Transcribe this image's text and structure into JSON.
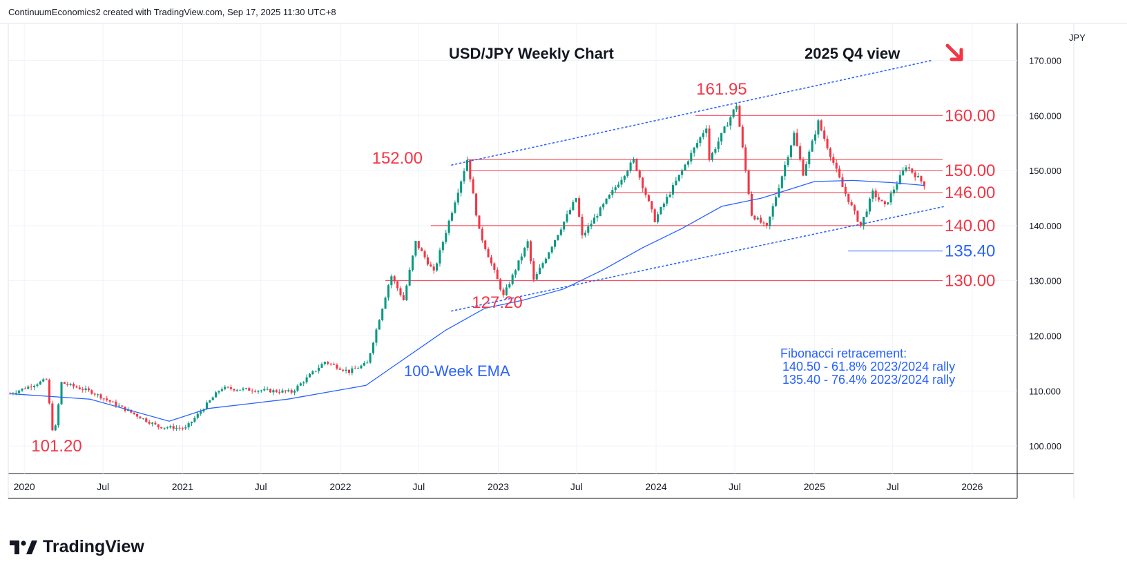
{
  "header": {
    "attribution": "ContinuumEconomics2 created with TradingView.com, Sep 17, 2025 11:30 UTC+8"
  },
  "brand": {
    "name": "TradingView"
  },
  "currency_label": "JPY",
  "colors": {
    "up": "#089981",
    "down": "#f23645",
    "level": "#f23645",
    "blue": "#2962ff",
    "ema": "#2962ff"
  },
  "chart_data": {
    "type": "candlestick",
    "title": "USD/JPY Weekly Chart",
    "subtitle": "2025 Q4 view",
    "y_ticks": [
      "100.000",
      "110.000",
      "120.000",
      "130.000",
      "140.000",
      "150.000",
      "160.000",
      "170.000"
    ],
    "ylim": [
      95,
      176.7
    ],
    "x_ticks": [
      "2020",
      "Jul",
      "2021",
      "Jul",
      "2022",
      "Jul",
      "2023",
      "Jul",
      "2024",
      "Jul",
      "2025",
      "Jul",
      "2026"
    ],
    "xlim": [
      "2019-11-25",
      "2026-04-15"
    ],
    "anchors": [
      [
        "2019-11-29",
        109.5
      ],
      [
        "2020-02-21",
        112.0
      ],
      [
        "2020-03-09",
        101.2
      ],
      [
        "2020-03-27",
        111.5
      ],
      [
        "2020-06-05",
        109.8
      ],
      [
        "2020-11-06",
        103.5
      ],
      [
        "2021-01-08",
        103.2
      ],
      [
        "2021-03-31",
        110.5
      ],
      [
        "2021-09-10",
        109.8
      ],
      [
        "2021-11-26",
        115.3
      ],
      [
        "2022-01-21",
        113.5
      ],
      [
        "2022-03-04",
        115.0
      ],
      [
        "2022-04-28",
        131.0
      ],
      [
        "2022-05-27",
        126.5
      ],
      [
        "2022-06-24",
        137.0
      ],
      [
        "2022-08-05",
        131.5
      ],
      [
        "2022-10-21",
        152.0
      ],
      [
        "2022-11-18",
        139.0
      ],
      [
        "2023-01-13",
        127.2
      ],
      [
        "2023-03-10",
        137.0
      ],
      [
        "2023-03-24",
        130.0
      ],
      [
        "2023-06-30",
        145.0
      ],
      [
        "2023-07-14",
        138.0
      ],
      [
        "2023-11-10",
        151.9
      ],
      [
        "2023-12-29",
        141.0
      ],
      [
        "2024-04-26",
        158.0
      ],
      [
        "2024-05-03",
        152.0
      ],
      [
        "2024-07-05",
        161.95
      ],
      [
        "2024-08-09",
        142.0
      ],
      [
        "2024-09-13",
        139.6
      ],
      [
        "2024-11-15",
        156.7
      ],
      [
        "2024-12-06",
        149.5
      ],
      [
        "2025-01-10",
        158.8
      ],
      [
        "2025-03-07",
        147.0
      ],
      [
        "2025-04-18",
        139.9
      ],
      [
        "2025-05-16",
        146.0
      ],
      [
        "2025-06-13",
        143.5
      ],
      [
        "2025-08-01",
        150.9
      ],
      [
        "2025-09-12",
        147.5
      ]
    ],
    "ema_label": "100-Week EMA",
    "ema": [
      [
        "2019-11-29",
        109.5
      ],
      [
        "2020-06-01",
        108.5
      ],
      [
        "2020-12-01",
        104.5
      ],
      [
        "2021-03-01",
        106.8
      ],
      [
        "2021-09-01",
        108.5
      ],
      [
        "2022-03-01",
        111.0
      ],
      [
        "2022-06-01",
        116.0
      ],
      [
        "2022-09-01",
        121.0
      ],
      [
        "2022-12-01",
        125.0
      ],
      [
        "2023-03-01",
        126.5
      ],
      [
        "2023-06-01",
        128.5
      ],
      [
        "2023-09-01",
        132.0
      ],
      [
        "2023-12-01",
        136.0
      ],
      [
        "2024-03-01",
        139.5
      ],
      [
        "2024-06-01",
        143.5
      ],
      [
        "2024-09-01",
        145.0
      ],
      [
        "2024-11-01",
        146.5
      ],
      [
        "2025-01-01",
        148.0
      ],
      [
        "2025-04-01",
        148.2
      ],
      [
        "2025-07-01",
        147.8
      ],
      [
        "2025-09-12",
        147.3
      ]
    ],
    "levels": [
      {
        "value": 160.0,
        "label": "160.00",
        "start": "2024-04-01"
      },
      {
        "value": 152.0,
        "label": "152.00",
        "start": "2022-10-21"
      },
      {
        "value": 150.0,
        "label": "150.00",
        "start": "2022-10-28"
      },
      {
        "value": 146.0,
        "label": "146.00",
        "start": "2023-09-15"
      },
      {
        "value": 140.0,
        "label": "140.00",
        "start": "2022-07-29"
      },
      {
        "value": 130.0,
        "label": "130.00",
        "start": "2022-04-15"
      }
    ],
    "fib_level": {
      "value": 135.4,
      "label": "135.40",
      "start": "2025-03-20"
    },
    "trend_upper": [
      [
        "2022-09-15",
        151.0
      ],
      [
        "2025-09-30",
        170.0
      ]
    ],
    "trend_lower": [
      [
        "2022-09-15",
        124.5
      ],
      [
        "2025-10-30",
        143.5
      ]
    ],
    "annotations": [
      {
        "text": "161.95",
        "x": "2024-07-05",
        "y": 161.95
      },
      {
        "text": "152.00",
        "x": "2022-10-21",
        "y": 152.0
      },
      {
        "text": "127.20",
        "x": "2023-01-13",
        "y": 127.2
      },
      {
        "text": "101.20",
        "x": "2020-03-09",
        "y": 101.2
      }
    ],
    "fib_note": [
      "Fibonacci retracement:",
      "140.50 - 61.8% 2023/2024 rally",
      "135.40 - 76.4% 2023/2024 rally"
    ],
    "arrow": "down-right",
    "grid": true
  }
}
